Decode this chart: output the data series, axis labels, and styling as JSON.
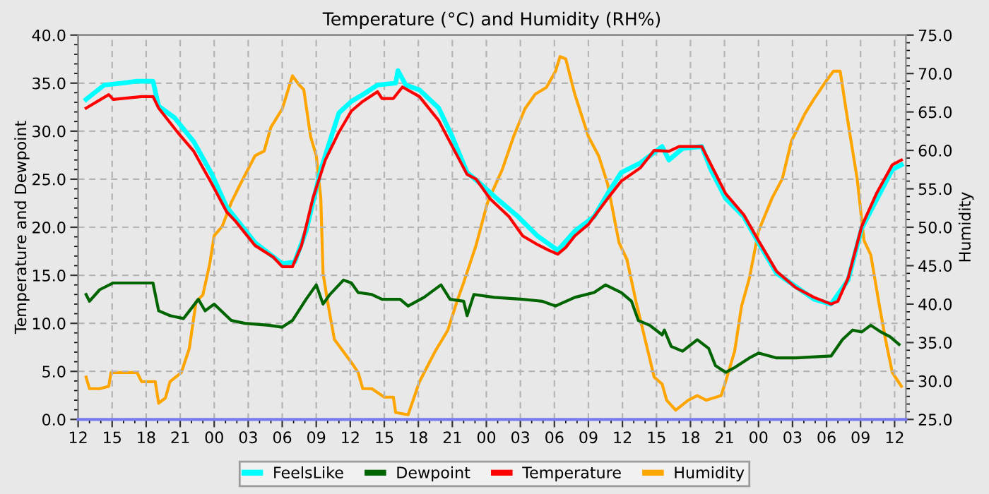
{
  "chart_data": {
    "type": "line",
    "title": "Temperature (°C) and Humidity (RH%)",
    "ylabel": "Temperature and Dewpoint",
    "y2label": "Humidity",
    "xlim": [
      12,
      85
    ],
    "ylim": [
      0,
      40
    ],
    "y2lim": [
      25,
      75
    ],
    "xticks": [
      {
        "value": 12,
        "label": "12"
      },
      {
        "value": 15,
        "label": "15"
      },
      {
        "value": 18,
        "label": "18"
      },
      {
        "value": 21,
        "label": "21"
      },
      {
        "value": 24,
        "label": "00"
      },
      {
        "value": 27,
        "label": "03"
      },
      {
        "value": 30,
        "label": "06"
      },
      {
        "value": 33,
        "label": "09"
      },
      {
        "value": 36,
        "label": "12"
      },
      {
        "value": 39,
        "label": "15"
      },
      {
        "value": 42,
        "label": "18"
      },
      {
        "value": 45,
        "label": "21"
      },
      {
        "value": 48,
        "label": "00"
      },
      {
        "value": 51,
        "label": "03"
      },
      {
        "value": 54,
        "label": "06"
      },
      {
        "value": 57,
        "label": "09"
      },
      {
        "value": 60,
        "label": "12"
      },
      {
        "value": 63,
        "label": "15"
      },
      {
        "value": 66,
        "label": "18"
      },
      {
        "value": 69,
        "label": "21"
      },
      {
        "value": 72,
        "label": "00"
      },
      {
        "value": 75,
        "label": "03"
      },
      {
        "value": 78,
        "label": "06"
      },
      {
        "value": 81,
        "label": "09"
      },
      {
        "value": 84,
        "label": "12"
      }
    ],
    "yticks": [
      {
        "value": 0,
        "label": "0.0"
      },
      {
        "value": 5,
        "label": "5.0"
      },
      {
        "value": 10,
        "label": "10.0"
      },
      {
        "value": 15,
        "label": "15.0"
      },
      {
        "value": 20,
        "label": "20.0"
      },
      {
        "value": 25,
        "label": "25.0"
      },
      {
        "value": 30,
        "label": "30.0"
      },
      {
        "value": 35,
        "label": "35.0"
      },
      {
        "value": 40,
        "label": "40.0"
      }
    ],
    "y2ticks": [
      {
        "value": 25,
        "label": "25.0"
      },
      {
        "value": 30,
        "label": "30.0"
      },
      {
        "value": 35,
        "label": "35.0"
      },
      {
        "value": 40,
        "label": "40.0"
      },
      {
        "value": 45,
        "label": "45.0"
      },
      {
        "value": 50,
        "label": "50.0"
      },
      {
        "value": 55,
        "label": "55.0"
      },
      {
        "value": 60,
        "label": "60.0"
      },
      {
        "value": 65,
        "label": "65.0"
      },
      {
        "value": 70,
        "label": "70.0"
      },
      {
        "value": 75,
        "label": "75.0"
      }
    ],
    "grid": true,
    "legend": "bottom",
    "marker": "none",
    "line_style": "solid",
    "series": [
      {
        "name": "FeelsLike",
        "color": "#00ffff",
        "x": [
          12.7,
          14.3,
          15.9,
          17.2,
          18.6,
          19.1,
          20.5,
          22.2,
          23.8,
          25.1,
          27.6,
          30.0,
          31.1,
          32.1,
          33.4,
          35.0,
          36.1,
          37.1,
          38.4,
          40.0,
          40.2,
          40.9,
          42.1,
          43.8,
          45.0,
          46.3,
          47.5,
          49.1,
          50.8,
          52.5,
          54.3,
          55.8,
          57.5,
          58.7,
          59.9,
          61.6,
          63.5,
          64.1,
          65.3,
          67.0,
          67.8,
          69.1,
          70.7,
          72.0,
          73.6,
          76.9,
          78.4,
          79.9,
          81.1,
          83.8,
          84.6
        ],
        "values": [
          33.3,
          34.8,
          35.0,
          35.2,
          35.2,
          32.6,
          31.4,
          28.9,
          25.5,
          22.1,
          18.4,
          16.2,
          16.4,
          19.6,
          26.0,
          31.9,
          33.1,
          33.8,
          34.8,
          35.0,
          36.3,
          34.8,
          34.3,
          32.4,
          29.4,
          25.7,
          24.5,
          22.8,
          21.1,
          19.1,
          17.6,
          19.6,
          21.1,
          23.5,
          25.7,
          26.7,
          28.4,
          27.0,
          28.2,
          28.4,
          26.0,
          23.0,
          21.1,
          18.4,
          15.2,
          12.5,
          12.0,
          14.5,
          19.9,
          26.0,
          26.5
        ]
      },
      {
        "name": "Dewpoint",
        "color": "#006400",
        "x": [
          12.7,
          13.0,
          13.9,
          15.1,
          15.9,
          17.6,
          18.6,
          19.1,
          20.1,
          21.3,
          22.6,
          23.2,
          24.0,
          25.5,
          26.7,
          28.8,
          30.0,
          30.9,
          32.1,
          33.0,
          33.6,
          34.2,
          35.4,
          36.1,
          36.7,
          37.9,
          38.8,
          40.4,
          41.1,
          42.5,
          44.0,
          44.8,
          46.0,
          46.3,
          46.9,
          48.7,
          51.2,
          52.9,
          54.1,
          55.8,
          57.5,
          58.5,
          59.9,
          60.8,
          61.4,
          62.4,
          63.5,
          63.7,
          64.3,
          65.3,
          66.6,
          67.6,
          68.2,
          69.1,
          69.9,
          71.2,
          72.0,
          73.6,
          75.3,
          78.4,
          79.4,
          80.3,
          81.1,
          81.9,
          82.8,
          83.6,
          84.4
        ],
        "values": [
          13.0,
          12.3,
          13.5,
          14.2,
          14.2,
          14.2,
          14.2,
          11.3,
          10.8,
          10.5,
          12.5,
          11.3,
          12.0,
          10.3,
          10.0,
          9.8,
          9.6,
          10.3,
          12.5,
          14.0,
          12.0,
          13.0,
          14.5,
          14.2,
          13.2,
          13.0,
          12.5,
          12.5,
          11.8,
          12.7,
          14.0,
          12.5,
          12.3,
          10.8,
          13.0,
          12.7,
          12.5,
          12.3,
          11.8,
          12.7,
          13.2,
          14.0,
          13.2,
          12.3,
          10.3,
          9.8,
          8.8,
          9.3,
          7.6,
          7.1,
          8.3,
          7.4,
          5.6,
          4.9,
          5.4,
          6.4,
          6.9,
          6.4,
          6.4,
          6.6,
          8.3,
          9.3,
          9.1,
          9.8,
          9.1,
          8.6,
          7.8
        ]
      },
      {
        "name": "Temperature",
        "color": "#ff0000",
        "x": [
          12.7,
          14.7,
          15.1,
          17.6,
          18.6,
          19.1,
          20.9,
          22.2,
          23.8,
          25.1,
          25.9,
          27.6,
          29.2,
          30.0,
          30.9,
          31.7,
          32.7,
          33.8,
          35.0,
          36.1,
          37.1,
          38.4,
          38.8,
          39.8,
          40.6,
          42.1,
          43.8,
          45.0,
          46.3,
          47.1,
          48.3,
          50.0,
          51.2,
          52.5,
          53.5,
          54.3,
          55.0,
          55.8,
          57.0,
          58.7,
          59.9,
          61.6,
          62.8,
          64.1,
          65.0,
          67.0,
          67.6,
          69.1,
          70.7,
          72.0,
          73.6,
          75.3,
          76.9,
          78.4,
          79.0,
          79.9,
          81.1,
          82.4,
          83.8,
          84.6
        ],
        "values": [
          32.4,
          33.8,
          33.3,
          33.6,
          33.6,
          32.4,
          29.7,
          27.9,
          24.5,
          21.6,
          20.6,
          18.1,
          16.9,
          15.9,
          15.9,
          18.1,
          23.0,
          27.0,
          29.9,
          32.1,
          33.1,
          34.1,
          33.4,
          33.4,
          34.6,
          33.6,
          31.1,
          28.4,
          25.5,
          25.0,
          23.0,
          21.1,
          19.1,
          18.2,
          17.6,
          17.2,
          17.9,
          19.1,
          20.3,
          23.0,
          24.8,
          26.2,
          28.0,
          27.9,
          28.4,
          28.4,
          27.0,
          23.5,
          21.3,
          18.6,
          15.4,
          13.7,
          12.7,
          12.0,
          12.3,
          14.7,
          20.1,
          23.5,
          26.5,
          27.0
        ]
      },
      {
        "name": "Humidity",
        "color": "#ffa500",
        "axis": "y2",
        "x": [
          12.7,
          13.0,
          13.9,
          14.7,
          14.9,
          17.2,
          17.6,
          18.8,
          19.1,
          19.7,
          20.1,
          21.1,
          21.8,
          22.4,
          23.0,
          23.6,
          24.0,
          24.7,
          25.5,
          26.3,
          27.6,
          28.4,
          29.0,
          30.0,
          30.9,
          31.5,
          31.9,
          32.5,
          33.0,
          33.4,
          33.6,
          34.0,
          34.6,
          36.1,
          36.7,
          37.1,
          37.9,
          39.0,
          39.8,
          40.0,
          41.1,
          42.1,
          43.5,
          44.6,
          45.4,
          46.0,
          47.1,
          48.1,
          49.4,
          50.4,
          51.4,
          52.3,
          53.3,
          54.1,
          54.5,
          55.0,
          55.8,
          57.0,
          57.9,
          58.7,
          59.7,
          60.4,
          61.2,
          62.0,
          62.8,
          63.5,
          63.9,
          64.7,
          65.8,
          66.6,
          67.4,
          68.7,
          69.1,
          69.9,
          70.5,
          71.2,
          72.0,
          73.2,
          74.1,
          74.9,
          76.1,
          76.9,
          78.0,
          78.6,
          79.2,
          79.9,
          80.7,
          81.3,
          81.9,
          82.6,
          83.2,
          83.8,
          84.6
        ],
        "values": [
          30.5,
          29.0,
          29.0,
          29.3,
          31.1,
          31.1,
          29.9,
          29.9,
          27.1,
          27.8,
          29.9,
          31.1,
          34.2,
          40.3,
          41.2,
          45.2,
          48.9,
          50.1,
          53.2,
          55.6,
          59.3,
          59.9,
          63.0,
          65.4,
          69.7,
          68.5,
          67.9,
          61.8,
          59.3,
          53.8,
          44.0,
          40.3,
          35.4,
          32.4,
          31.1,
          29.0,
          29.0,
          27.9,
          27.9,
          25.9,
          25.6,
          29.9,
          33.9,
          36.6,
          40.3,
          42.8,
          47.7,
          53.2,
          57.5,
          61.8,
          65.4,
          67.3,
          68.2,
          70.3,
          72.2,
          71.9,
          67.3,
          61.8,
          59.3,
          55.6,
          48.0,
          45.8,
          40.3,
          35.4,
          30.5,
          29.6,
          27.5,
          26.2,
          27.5,
          28.1,
          27.5,
          28.1,
          29.9,
          33.9,
          39.7,
          43.4,
          49.5,
          53.8,
          56.3,
          61.2,
          64.8,
          66.7,
          69.1,
          70.3,
          70.3,
          63.6,
          56.3,
          48.3,
          46.4,
          40.3,
          35.4,
          31.1,
          29.3
        ]
      },
      {
        "color": "#7b7bf0",
        "x": [
          12,
          85
        ],
        "values": [
          0,
          0
        ]
      }
    ]
  }
}
